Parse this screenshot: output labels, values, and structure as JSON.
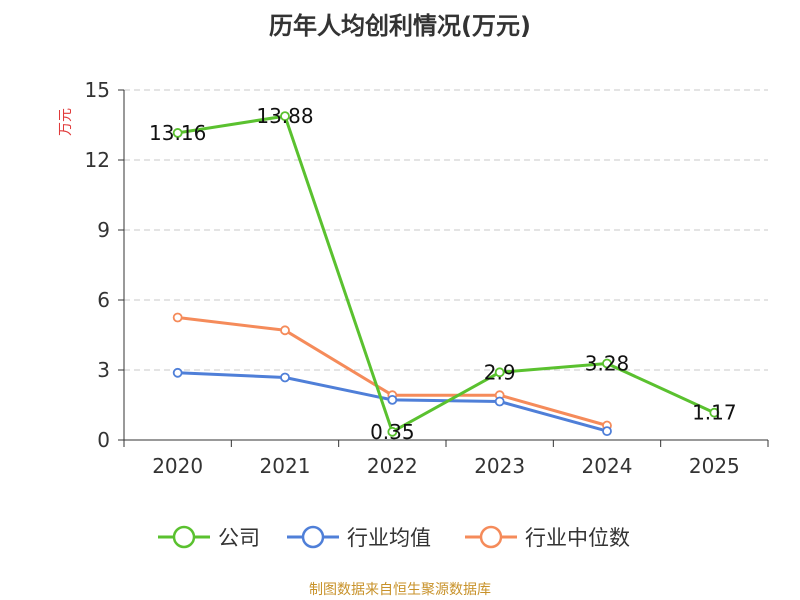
{
  "chart_data": {
    "type": "line",
    "title": "历年人均创利情况(万元)",
    "ylabel": "万元",
    "categories": [
      "2020",
      "2021",
      "2022",
      "2023",
      "2024",
      "2025"
    ],
    "ylim": [
      0,
      15
    ],
    "yticks": [
      0,
      3,
      6,
      9,
      12,
      15
    ],
    "grid": true,
    "legend_position": "bottom",
    "series": [
      {
        "name": "公司",
        "color": "#5ac12f",
        "values": [
          13.16,
          13.88,
          0.35,
          2.9,
          3.28,
          1.17
        ],
        "labels": [
          "13.16",
          "13.88",
          "0.35",
          "2.9",
          "3.28",
          "1.17"
        ]
      },
      {
        "name": "行业均值",
        "color": "#4f7fd8",
        "values": [
          2.88,
          2.68,
          1.72,
          1.65,
          0.38,
          null
        ]
      },
      {
        "name": "行业中位数",
        "color": "#f58b5a",
        "values": [
          5.25,
          4.7,
          1.92,
          1.92,
          0.62,
          null
        ]
      }
    ]
  },
  "source_text": "制图数据来自恒生聚源数据库"
}
